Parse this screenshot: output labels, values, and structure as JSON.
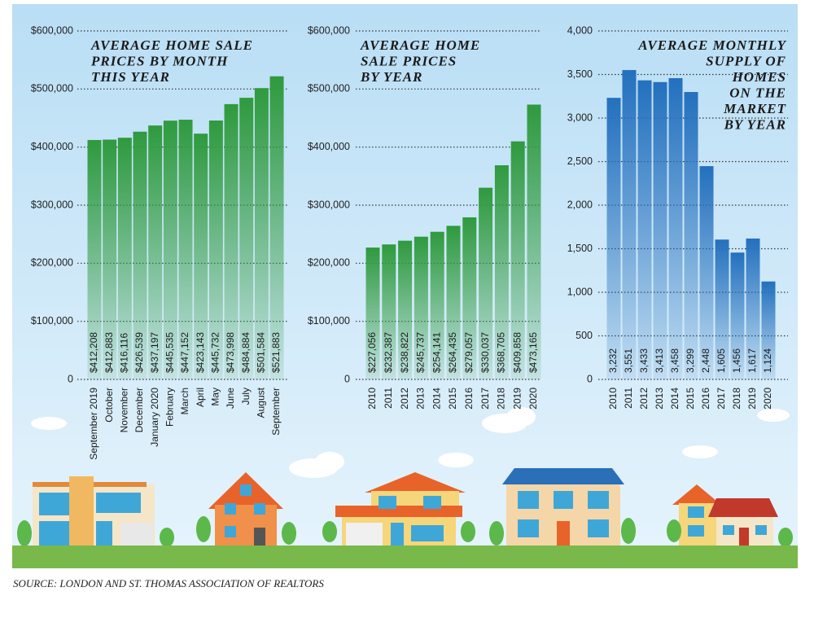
{
  "chart_data": [
    {
      "type": "bar",
      "title": [
        "AVERAGE HOME SALE",
        "PRICES BY MONTH",
        "THIS YEAR"
      ],
      "categories": [
        "September 2019",
        "October",
        "November",
        "December",
        "January 2020",
        "February",
        "March",
        "April",
        "May",
        "June",
        "July",
        "August",
        "September"
      ],
      "values": [
        412208,
        412883,
        416116,
        426539,
        437197,
        445535,
        447152,
        423143,
        445732,
        473998,
        484884,
        501584,
        521883
      ],
      "value_labels": [
        "$412,208",
        "$412,883",
        "$416,116",
        "$426,539",
        "$437,197",
        "$445,535",
        "$447,152",
        "$423,143",
        "$445,732",
        "$473,998",
        "$484,884",
        "$501,584",
        "$521,883"
      ],
      "color": "#2f9a3e",
      "ylim": [
        0,
        600000
      ],
      "yticks": [
        0,
        {
          "value": 100000,
          "label": "$100,000"
        },
        {
          "value": 200000,
          "label": "$200,000"
        },
        {
          "value": 300000,
          "label": "$300,000"
        },
        {
          "value": 400000,
          "label": "$400,000"
        },
        {
          "value": 500000,
          "label": "$500,000"
        },
        {
          "value": 600000,
          "label": "$600,000"
        }
      ],
      "grid": true
    },
    {
      "type": "bar",
      "title": [
        "AVERAGE HOME",
        "SALE PRICES",
        "BY YEAR"
      ],
      "categories": [
        "2010",
        "2011",
        "2012",
        "2013",
        "2014",
        "2015",
        "2016",
        "2017",
        "2018",
        "2019",
        "2020"
      ],
      "values": [
        227056,
        232387,
        238822,
        245737,
        254141,
        264435,
        279057,
        330037,
        368705,
        409858,
        473165
      ],
      "value_labels": [
        "$227,056",
        "$232,387",
        "$238,822",
        "$245,737",
        "$254,141",
        "$264,435",
        "$279,057",
        "$330,037",
        "$368,705",
        "$409,858",
        "$473,165"
      ],
      "color": "#2f9a3e",
      "ylim": [
        0,
        600000
      ],
      "yticks": [
        0,
        {
          "value": 100000,
          "label": "$100,000"
        },
        {
          "value": 200000,
          "label": "$200,000"
        },
        {
          "value": 300000,
          "label": "$300,000"
        },
        {
          "value": 400000,
          "label": "$400,000"
        },
        {
          "value": 500000,
          "label": "$500,000"
        },
        {
          "value": 600000,
          "label": "$600,000"
        }
      ],
      "grid": true
    },
    {
      "type": "bar",
      "title": [
        "AVERAGE MONTHLY",
        "SUPPLY OF",
        "HOMES",
        "ON THE",
        "MARKET",
        "BY YEAR"
      ],
      "categories": [
        "2010",
        "2011",
        "2012",
        "2013",
        "2014",
        "2015",
        "2016",
        "2017",
        "2018",
        "2019",
        "2020"
      ],
      "values": [
        3232,
        3551,
        3433,
        3413,
        3458,
        3299,
        2448,
        1605,
        1456,
        1617,
        1124
      ],
      "value_labels": [
        "3,232",
        "3,551",
        "3,433",
        "3,413",
        "3,458",
        "3,299",
        "2,448",
        "1,605",
        "1,456",
        "1,617",
        "1,124"
      ],
      "color": "#2470be",
      "ylim": [
        0,
        4000
      ],
      "yticks": [
        0,
        500,
        {
          "value": 1000,
          "label": "1,000"
        },
        {
          "value": 1500,
          "label": "1,500"
        },
        {
          "value": 2000,
          "label": "2,000"
        },
        {
          "value": 2500,
          "label": "2,500"
        },
        {
          "value": 3000,
          "label": "3,000"
        },
        {
          "value": 3500,
          "label": "3,500"
        },
        {
          "value": 4000,
          "label": "4,000"
        }
      ],
      "grid": true
    }
  ],
  "source": "SOURCE: LONDON AND ST. THOMAS ASSOCIATION OF REALTORS"
}
